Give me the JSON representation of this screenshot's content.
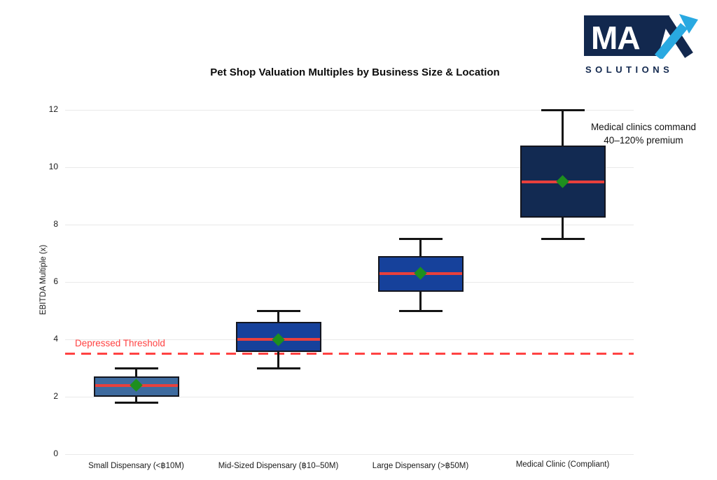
{
  "logo": {
    "brand": "MAX",
    "brand_letters": "MA",
    "sub": "SOLUTIONS",
    "navy": "#12284E",
    "light_blue": "#29A9E1"
  },
  "chart_data": {
    "type": "box",
    "title": "Pet Shop Valuation Multiples by Business Size & Location",
    "ylabel": "EBITDA Multiple (x)",
    "ylim": [
      0,
      12.3
    ],
    "yticks": [
      0,
      2,
      4,
      6,
      8,
      10,
      12
    ],
    "grid": true,
    "categories": [
      "Small Dispensary (<฿10M)",
      "Mid-Sized Dispensary (฿10–50M)",
      "Large Dispensary (>฿50M)",
      "Medical Clinic (Compliant)"
    ],
    "series": [
      {
        "label": "Small Dispensary (<฿10M)",
        "whisker_low": 1.8,
        "q1": 2.0,
        "median": 2.4,
        "mean": 2.4,
        "q3": 2.7,
        "whisker_high": 3.0,
        "fill": "#3E6B9F"
      },
      {
        "label": "Mid-Sized Dispensary (฿10–50M)",
        "whisker_low": 3.0,
        "q1": 3.55,
        "median": 4.0,
        "mean": 4.0,
        "q3": 4.6,
        "whisker_high": 5.0,
        "fill": "#16419B"
      },
      {
        "label": "Large Dispensary (>฿50M)",
        "whisker_low": 5.0,
        "q1": 5.65,
        "median": 6.3,
        "mean": 6.3,
        "q3": 6.9,
        "whisker_high": 7.5,
        "fill": "#16419B"
      },
      {
        "label": "Medical Clinic (Compliant)",
        "whisker_low": 7.5,
        "q1": 8.25,
        "median": 9.5,
        "mean": 9.5,
        "q3": 10.75,
        "whisker_high": 12.0,
        "fill": "#122A52"
      }
    ],
    "threshold": {
      "value": 3.5,
      "label": "Depressed Threshold",
      "color": "#FF4242"
    },
    "annotation": {
      "lines": [
        "Medical clinics command",
        "40–120% premium"
      ]
    },
    "colors": {
      "median_line": "#E8403C",
      "mean_marker": "#1E8F1E",
      "whisker": "#141414",
      "gridline": "#E9E9E9"
    },
    "legend": "none"
  }
}
